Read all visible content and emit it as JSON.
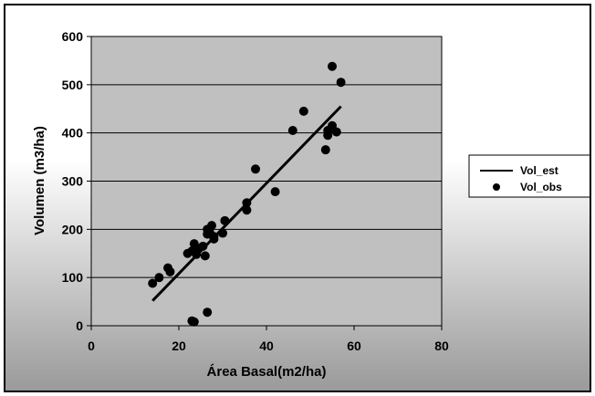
{
  "chart_data": {
    "type": "scatter",
    "xlabel": "Área Basal(m2/ha)",
    "ylabel": "Volumen (m3/ha)",
    "xlim": [
      0,
      80
    ],
    "ylim": [
      0,
      600
    ],
    "xticks": [
      "0",
      "20",
      "40",
      "60",
      "80"
    ],
    "yticks": [
      "0",
      "100",
      "200",
      "300",
      "400",
      "500",
      "600"
    ],
    "grid": true,
    "legend": "right",
    "plot_background": "#c0c0c0",
    "series": [
      {
        "name": "Vol_est",
        "style": "line",
        "color": "#000000",
        "x": [
          14,
          57
        ],
        "y": [
          52,
          455
        ]
      },
      {
        "name": "Vol_obs",
        "style": "marker",
        "color": "#000000",
        "x": [
          14,
          15.5,
          17.5,
          18,
          22,
          23,
          23.5,
          24,
          24,
          25.5,
          26,
          26.5,
          26.5,
          27,
          27.5,
          28,
          28,
          30,
          30.5,
          35.5,
          35.5,
          37.5,
          42,
          46,
          48.5,
          53.5,
          54,
          54,
          55,
          55,
          56,
          57,
          23,
          23.5,
          26.5
        ],
        "y": [
          88,
          100,
          120,
          112,
          150,
          155,
          170,
          160,
          148,
          165,
          145,
          200,
          190,
          195,
          208,
          185,
          180,
          192,
          218,
          255,
          240,
          325,
          278,
          405,
          445,
          365,
          405,
          395,
          415,
          538,
          402,
          505,
          10,
          8,
          28
        ]
      }
    ]
  }
}
